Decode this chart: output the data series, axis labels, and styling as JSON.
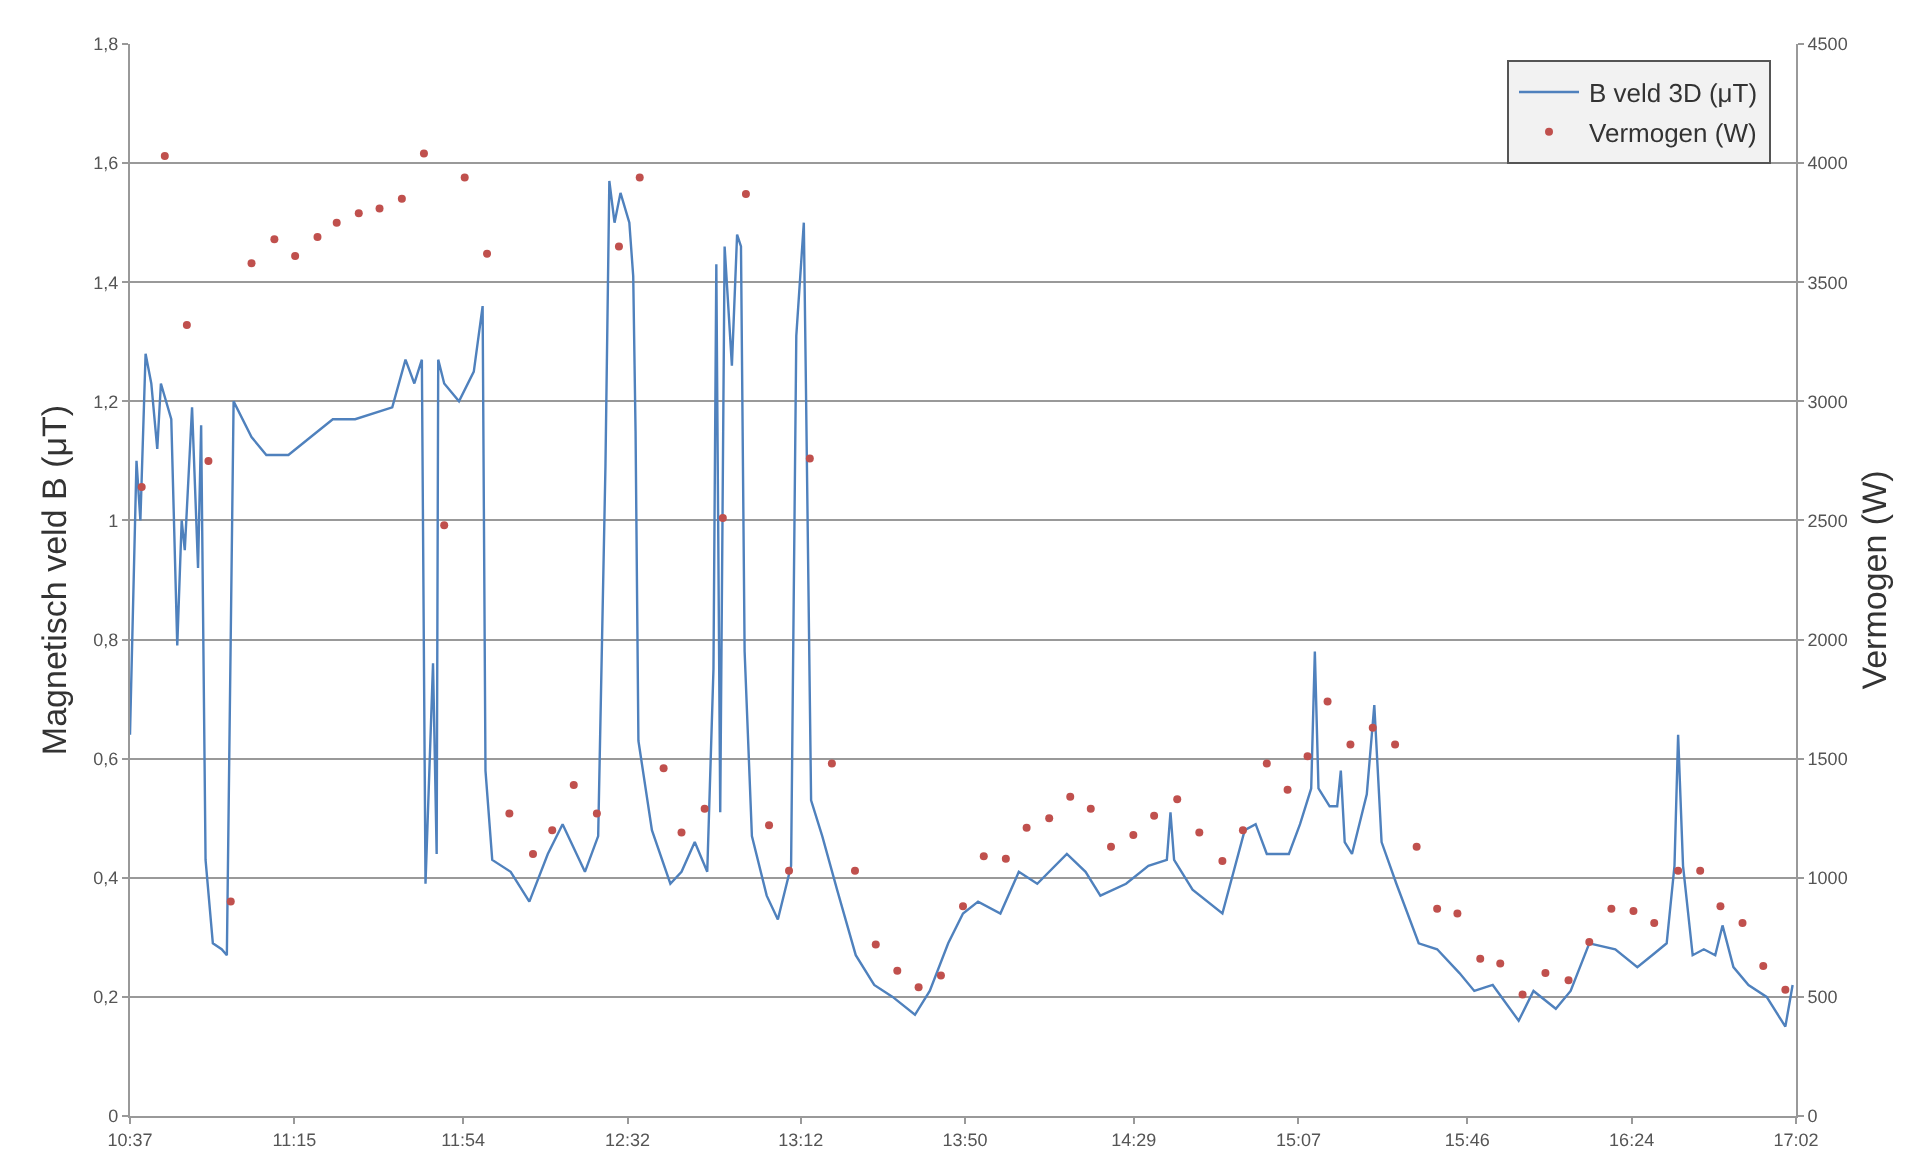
{
  "chart_data": {
    "type": "line",
    "ylabel": "Magnetisch veld B (μT)",
    "y2label": "Vermogen (W)",
    "xlim": [
      10.617,
      17.033
    ],
    "xticks": [
      {
        "value": 10.617,
        "label": "10:37"
      },
      {
        "value": 11.25,
        "label": "11:15"
      },
      {
        "value": 11.9,
        "label": "11:54"
      },
      {
        "value": 12.533,
        "label": "12:32"
      },
      {
        "value": 13.2,
        "label": "13:12"
      },
      {
        "value": 13.833,
        "label": "13:50"
      },
      {
        "value": 14.483,
        "label": "14:29"
      },
      {
        "value": 15.117,
        "label": "15:07"
      },
      {
        "value": 15.767,
        "label": "15:46"
      },
      {
        "value": 16.4,
        "label": "16:24"
      },
      {
        "value": 17.033,
        "label": "17:02"
      }
    ],
    "ylim": [
      0,
      1.8
    ],
    "yticks": [
      0,
      {
        "value": 0.2,
        "label": "0,2"
      },
      {
        "value": 0.4,
        "label": "0,4"
      },
      {
        "value": 0.6,
        "label": "0,6"
      },
      {
        "value": 0.8,
        "label": "0,8"
      },
      1,
      {
        "value": 1.2,
        "label": "1,2"
      },
      {
        "value": 1.4,
        "label": "1,4"
      },
      {
        "value": 1.6,
        "label": "1,6"
      },
      {
        "value": 1.8,
        "label": "1,8"
      }
    ],
    "y2lim": [
      0,
      4500
    ],
    "y2ticks": [
      0,
      500,
      1000,
      1500,
      2000,
      2500,
      3000,
      3500,
      4000,
      4500
    ],
    "grid": "y",
    "legend": "top right",
    "series": [
      {
        "name": "B veld 3D (μT)",
        "color": "#4f81bd",
        "x": [
          10.617,
          10.642,
          10.657,
          10.677,
          10.699,
          10.722,
          10.736,
          10.776,
          10.799,
          10.816,
          10.828,
          10.856,
          10.879,
          10.891,
          10.908,
          10.936,
          10.97,
          10.99,
          11.016,
          11.085,
          11.142,
          11.227,
          11.313,
          11.398,
          11.484,
          11.627,
          11.678,
          11.712,
          11.741,
          11.755,
          11.784,
          11.798,
          11.804,
          11.827,
          11.884,
          11.941,
          11.975,
          11.986,
          12.012,
          12.083,
          12.155,
          12.226,
          12.283,
          12.369,
          12.42,
          12.448,
          12.463,
          12.483,
          12.506,
          12.54,
          12.555,
          12.564,
          12.575,
          12.627,
          12.698,
          12.741,
          12.792,
          12.84,
          12.864,
          12.875,
          12.89,
          12.907,
          12.935,
          12.955,
          12.97,
          12.984,
          13.012,
          13.069,
          13.112,
          13.163,
          13.183,
          13.212,
          13.22,
          13.24,
          13.283,
          13.34,
          13.412,
          13.483,
          13.554,
          13.64,
          13.697,
          13.768,
          13.825,
          13.883,
          13.969,
          14.04,
          14.111,
          14.225,
          14.297,
          14.354,
          14.453,
          14.539,
          14.61,
          14.624,
          14.638,
          14.709,
          14.824,
          14.91,
          14.952,
          14.995,
          15.08,
          15.123,
          15.166,
          15.18,
          15.194,
          15.237,
          15.266,
          15.28,
          15.295,
          15.323,
          15.38,
          15.409,
          15.437,
          15.494,
          15.58,
          15.651,
          15.737,
          15.794,
          15.865,
          15.965,
          16.022,
          16.108,
          16.165,
          16.237,
          16.337,
          16.422,
          16.479,
          16.535,
          16.565,
          16.579,
          16.598,
          16.635,
          16.678,
          16.722,
          16.75,
          16.792,
          16.85,
          16.92,
          16.992,
          17.02
        ],
        "values": [
          0.64,
          1.1,
          1.0,
          1.28,
          1.23,
          1.12,
          1.23,
          1.17,
          0.79,
          1.0,
          0.95,
          1.19,
          0.92,
          1.16,
          0.43,
          0.29,
          0.28,
          0.27,
          1.2,
          1.14,
          1.11,
          1.11,
          1.14,
          1.17,
          1.17,
          1.19,
          1.27,
          1.23,
          1.27,
          0.39,
          0.76,
          0.44,
          1.27,
          1.23,
          1.2,
          1.25,
          1.36,
          0.58,
          0.43,
          0.41,
          0.36,
          0.44,
          0.49,
          0.41,
          0.47,
          1.09,
          1.57,
          1.5,
          1.55,
          1.5,
          1.41,
          1.15,
          0.63,
          0.48,
          0.39,
          0.41,
          0.46,
          0.41,
          0.75,
          1.43,
          0.51,
          1.46,
          1.26,
          1.48,
          1.46,
          0.78,
          0.47,
          0.37,
          0.33,
          0.42,
          1.31,
          1.5,
          1.23,
          0.53,
          0.47,
          0.38,
          0.27,
          0.22,
          0.2,
          0.17,
          0.21,
          0.29,
          0.34,
          0.36,
          0.34,
          0.41,
          0.39,
          0.44,
          0.41,
          0.37,
          0.39,
          0.42,
          0.43,
          0.51,
          0.43,
          0.38,
          0.34,
          0.48,
          0.49,
          0.44,
          0.44,
          0.49,
          0.55,
          0.78,
          0.55,
          0.52,
          0.52,
          0.58,
          0.46,
          0.44,
          0.54,
          0.69,
          0.46,
          0.39,
          0.29,
          0.28,
          0.24,
          0.21,
          0.22,
          0.16,
          0.21,
          0.18,
          0.21,
          0.29,
          0.28,
          0.25,
          0.27,
          0.29,
          0.42,
          0.64,
          0.42,
          0.27,
          0.28,
          0.27,
          0.32,
          0.25,
          0.22,
          0.2,
          0.15,
          0.22
        ]
      },
      {
        "name": "Vermogen (W)",
        "type": "scatter",
        "marker": "circle",
        "axis": "y2",
        "color": "#c0504d",
        "x": [
          10.662,
          10.751,
          10.836,
          10.919,
          11.005,
          11.085,
          11.173,
          11.253,
          11.339,
          11.413,
          11.498,
          11.578,
          11.664,
          11.749,
          11.827,
          11.906,
          11.992,
          12.078,
          12.169,
          12.243,
          12.326,
          12.415,
          12.5,
          12.58,
          12.672,
          12.741,
          12.83,
          12.9,
          12.989,
          13.078,
          13.155,
          13.235,
          13.32,
          13.409,
          13.489,
          13.572,
          13.654,
          13.74,
          13.825,
          13.905,
          13.99,
          14.07,
          14.157,
          14.238,
          14.317,
          14.395,
          14.481,
          14.561,
          14.65,
          14.735,
          14.824,
          14.903,
          14.995,
          15.075,
          15.152,
          15.229,
          15.317,
          15.403,
          15.489,
          15.572,
          15.651,
          15.729,
          15.817,
          15.894,
          15.98,
          16.068,
          16.157,
          16.237,
          16.322,
          16.407,
          16.487,
          16.579,
          16.664,
          16.742,
          16.827,
          16.907,
          16.992
        ],
        "values": [
          2640,
          4030,
          3320,
          2750,
          900,
          3580,
          3680,
          3610,
          3690,
          3750,
          3790,
          3810,
          3850,
          4040,
          2480,
          3940,
          3620,
          1270,
          1100,
          1200,
          1390,
          1270,
          3650,
          3940,
          1460,
          1190,
          1290,
          2510,
          3870,
          1220,
          1030,
          2760,
          1480,
          1030,
          720,
          610,
          540,
          590,
          880,
          1090,
          1080,
          1210,
          1250,
          1340,
          1290,
          1130,
          1180,
          1260,
          1330,
          1190,
          1070,
          1200,
          1480,
          1370,
          1510,
          1740,
          1560,
          1630,
          1560,
          1130,
          870,
          850,
          660,
          640,
          510,
          600,
          570,
          730,
          870,
          860,
          810,
          1030,
          1030,
          880,
          810,
          630,
          530
        ]
      }
    ]
  }
}
